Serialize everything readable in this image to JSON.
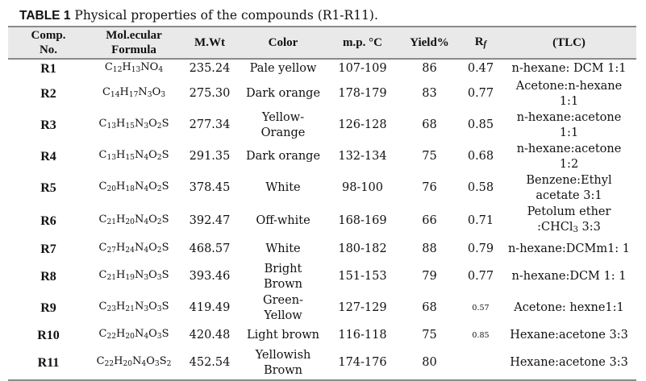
{
  "caption": {
    "label": "TABLE 1",
    "text": "Physical properties of the compounds (R1-R11)."
  },
  "headers": {
    "comp": [
      "Comp.",
      "No."
    ],
    "formula": [
      "Mol.ecular",
      "Formula"
    ],
    "mwt": "M.Wt",
    "color": "Color",
    "mp": "m.p. °C",
    "yield": "Yield%",
    "rf_main": "R",
    "rf_sub": "f",
    "tlc": "(TLC)"
  },
  "rows": [
    {
      "id": "R1",
      "formula": [
        [
          "C",
          ""
        ],
        [
          "12",
          1
        ],
        [
          "H",
          ""
        ],
        [
          "13",
          1
        ],
        [
          "NO",
          ""
        ],
        [
          "4",
          1
        ]
      ],
      "mw": "235.24",
      "color": [
        "Pale yellow"
      ],
      "mp": "107-109",
      "yield": "86",
      "rf": "0.47",
      "rf_small": false,
      "tlc": [
        "n-hexane: DCM 1:1"
      ]
    },
    {
      "id": "R2",
      "formula": [
        [
          "C",
          ""
        ],
        [
          "14",
          1
        ],
        [
          "H",
          ""
        ],
        [
          "17",
          1
        ],
        [
          "N",
          ""
        ],
        [
          "3",
          1
        ],
        [
          "O",
          ""
        ],
        [
          "3",
          1
        ]
      ],
      "mw": "275.30",
      "color": [
        "Dark orange"
      ],
      "mp": "178-179",
      "yield": "83",
      "rf": "0.77",
      "rf_small": false,
      "tlc": [
        "Acetone:n-hexane",
        "1:1"
      ]
    },
    {
      "id": "R3",
      "formula": [
        [
          "C",
          ""
        ],
        [
          "13",
          1
        ],
        [
          "H",
          ""
        ],
        [
          "15",
          1
        ],
        [
          "N",
          ""
        ],
        [
          "3",
          1
        ],
        [
          "O",
          ""
        ],
        [
          "2",
          1
        ],
        [
          "S",
          ""
        ]
      ],
      "mw": "277.34",
      "color": [
        "Yellow-",
        "Orange"
      ],
      "mp": "126-128",
      "yield": "68",
      "rf": "0.85",
      "rf_small": false,
      "tlc": [
        "n-hexane:acetone",
        "1:1"
      ]
    },
    {
      "id": "R4",
      "formula": [
        [
          "C",
          ""
        ],
        [
          "13",
          1
        ],
        [
          "H",
          ""
        ],
        [
          "15",
          1
        ],
        [
          "N",
          ""
        ],
        [
          "4",
          1
        ],
        [
          "O",
          ""
        ],
        [
          "2",
          1
        ],
        [
          "S",
          ""
        ]
      ],
      "mw": "291.35",
      "color": [
        "Dark orange"
      ],
      "mp": "132-134",
      "yield": "75",
      "rf": "0.68",
      "rf_small": false,
      "tlc": [
        "n-hexane:acetone",
        "1:2"
      ]
    },
    {
      "id": "R5",
      "formula": [
        [
          "C",
          ""
        ],
        [
          "20",
          1
        ],
        [
          "H",
          ""
        ],
        [
          "18",
          1
        ],
        [
          "N",
          ""
        ],
        [
          "4",
          1
        ],
        [
          "O",
          ""
        ],
        [
          "2",
          1
        ],
        [
          "S",
          ""
        ]
      ],
      "mw": "378.45",
      "color": [
        "White"
      ],
      "mp": "98-100",
      "yield": "76",
      "rf": "0.58",
      "rf_small": false,
      "tlc": [
        "Benzene:Ethyl",
        "acetate 3:1"
      ]
    },
    {
      "id": "R6",
      "formula": [
        [
          "C",
          ""
        ],
        [
          "21",
          1
        ],
        [
          "H",
          ""
        ],
        [
          "20",
          1
        ],
        [
          "N",
          ""
        ],
        [
          "4",
          1
        ],
        [
          "O",
          ""
        ],
        [
          "2",
          1
        ],
        [
          "S",
          ""
        ]
      ],
      "mw": "392.47",
      "color": [
        "Off-white"
      ],
      "mp": "168-169",
      "yield": "66",
      "rf": "0.71",
      "rf_small": false,
      "tlc": [
        "Petolum ether",
        [
          [
            ":CHCl",
            ""
          ],
          [
            "3",
            1
          ],
          [
            " 3:3",
            ""
          ]
        ]
      ]
    },
    {
      "id": "R7",
      "formula": [
        [
          "C",
          ""
        ],
        [
          "27",
          1
        ],
        [
          "H",
          ""
        ],
        [
          "24",
          1
        ],
        [
          "N",
          ""
        ],
        [
          "4",
          1
        ],
        [
          "O",
          ""
        ],
        [
          "2",
          1
        ],
        [
          "S",
          ""
        ]
      ],
      "mw": "468.57",
      "color": [
        "White"
      ],
      "mp": "180-182",
      "yield": "88",
      "rf": "0.79",
      "rf_small": false,
      "tlc": [
        "n-hexane:DCMm1: 1"
      ]
    },
    {
      "id": "R8",
      "formula": [
        [
          "C",
          ""
        ],
        [
          "21",
          1
        ],
        [
          "H",
          ""
        ],
        [
          "19",
          1
        ],
        [
          "N",
          ""
        ],
        [
          "3",
          1
        ],
        [
          "O",
          ""
        ],
        [
          "3",
          1
        ],
        [
          "S",
          ""
        ]
      ],
      "mw": "393.46",
      "color": [
        "Bright",
        "Brown"
      ],
      "mp": "151-153",
      "yield": "79",
      "rf": "0.77",
      "rf_small": false,
      "tlc": [
        "n-hexane:DCM 1: 1"
      ]
    },
    {
      "id": "R9",
      "formula": [
        [
          "C",
          ""
        ],
        [
          "23",
          1
        ],
        [
          "H",
          ""
        ],
        [
          "21",
          1
        ],
        [
          "N",
          ""
        ],
        [
          "3",
          1
        ],
        [
          "O",
          ""
        ],
        [
          "3",
          1
        ],
        [
          "S",
          ""
        ]
      ],
      "mw": "419.49",
      "color": [
        "Green-",
        "Yellow"
      ],
      "mp": "127-129",
      "yield": "68",
      "rf": "0.57",
      "rf_small": true,
      "tlc": [
        "Acetone: hexne1:1"
      ]
    },
    {
      "id": "R10",
      "formula": [
        [
          "C",
          ""
        ],
        [
          "22",
          1
        ],
        [
          "H",
          ""
        ],
        [
          "20",
          1
        ],
        [
          "N",
          ""
        ],
        [
          "4",
          1
        ],
        [
          "O",
          ""
        ],
        [
          "3",
          1
        ],
        [
          "S",
          ""
        ]
      ],
      "mw": "420.48",
      "color": [
        "Light brown"
      ],
      "mp": "116-118",
      "yield": "75",
      "rf": "0.85",
      "rf_small": true,
      "tlc": [
        "Hexane:acetone 3:3"
      ]
    },
    {
      "id": "R11",
      "formula": [
        [
          "C",
          ""
        ],
        [
          "22",
          1
        ],
        [
          "H",
          ""
        ],
        [
          "20",
          1
        ],
        [
          "N",
          ""
        ],
        [
          "4",
          1
        ],
        [
          "O",
          ""
        ],
        [
          "3",
          1
        ],
        [
          "S",
          ""
        ],
        [
          "2",
          1
        ]
      ],
      "mw": "452.54",
      "color": [
        "Yellowish",
        "Brown"
      ],
      "mp": "174-176",
      "yield": "80",
      "rf": "",
      "rf_small": false,
      "tlc": [
        "Hexane:acetone 3:3"
      ]
    }
  ]
}
